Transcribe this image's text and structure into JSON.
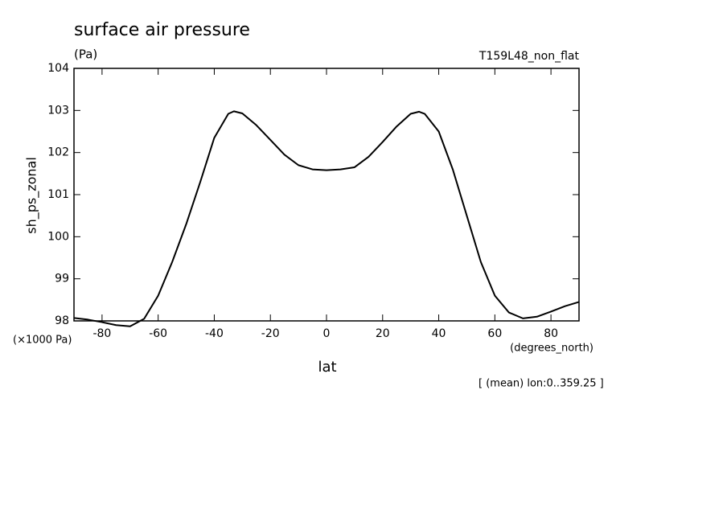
{
  "chart_data": {
    "type": "line",
    "title": "surface air pressure",
    "subtitle": "(Pa)",
    "run_label": "T159L48_non_flat",
    "x_label": "lat",
    "x_units": "(degrees_north)",
    "y_label": "sh_ps_zonal",
    "y_units": "(×1000 Pa)",
    "note": "[ (mean) lon:0..359.25 ]",
    "x": [
      -90,
      -85,
      -80,
      -75,
      -70,
      -65,
      -60,
      -55,
      -50,
      -45,
      -40,
      -35,
      -33,
      -30,
      -25,
      -20,
      -15,
      -10,
      -5,
      0,
      5,
      10,
      15,
      20,
      25,
      30,
      33,
      35,
      40,
      45,
      50,
      55,
      60,
      65,
      70,
      75,
      80,
      85,
      90
    ],
    "series": [
      {
        "name": "sh_ps_zonal",
        "color": "#000000",
        "values": [
          98.07,
          98.03,
          97.97,
          97.9,
          97.87,
          98.05,
          98.6,
          99.4,
          100.3,
          101.3,
          102.35,
          102.92,
          102.98,
          102.93,
          102.65,
          102.3,
          101.95,
          101.7,
          101.6,
          101.58,
          101.6,
          101.65,
          101.9,
          102.25,
          102.62,
          102.92,
          102.97,
          102.92,
          102.5,
          101.6,
          100.5,
          99.4,
          98.6,
          98.2,
          98.06,
          98.1,
          98.22,
          98.35,
          98.45
        ]
      }
    ],
    "xlim": [
      -90,
      90
    ],
    "xticks": [
      -80,
      -60,
      -40,
      -20,
      0,
      20,
      40,
      60,
      80
    ],
    "ylim": [
      98,
      104
    ],
    "yticks": [
      98,
      99,
      100,
      101,
      102,
      103,
      104
    ]
  }
}
